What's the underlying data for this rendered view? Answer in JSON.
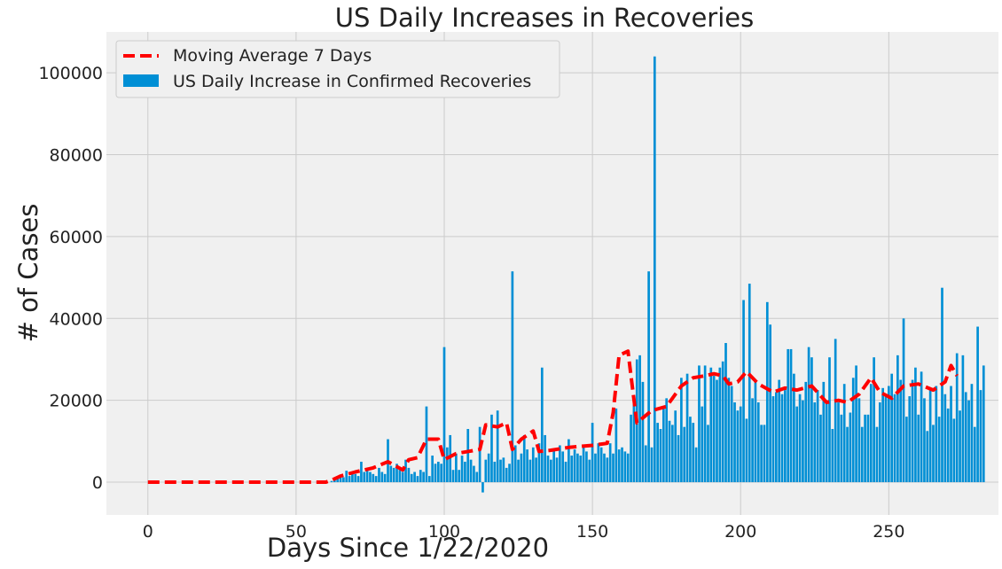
{
  "chart_data": {
    "type": "bar",
    "title": "US Daily Increases in Recoveries",
    "xlabel": "Days Since 1/22/2020",
    "ylabel": "# of Cases",
    "xlim": [
      -14,
      287
    ],
    "ylim": [
      -8000,
      110000
    ],
    "xticks": [
      0,
      50,
      100,
      150,
      200,
      250
    ],
    "yticks": [
      0,
      20000,
      40000,
      60000,
      80000,
      100000
    ],
    "grid": true,
    "legend_position": "top-left",
    "series": [
      {
        "name": "Moving Average 7 Days",
        "kind": "line",
        "style": "dashed",
        "color": "#ff0000",
        "x": [
          0,
          60,
          62,
          65,
          70,
          76,
          81,
          86,
          88,
          91,
          94,
          98,
          100,
          104,
          108,
          112,
          114,
          118,
          121,
          123,
          126,
          130,
          132,
          136,
          142,
          150,
          155,
          157,
          159,
          162,
          163,
          165,
          170,
          175,
          180,
          184,
          188,
          191,
          194,
          196,
          199,
          202,
          206,
          211,
          215,
          219,
          224,
          229,
          233,
          236,
          240,
          244,
          247,
          251,
          255,
          260,
          265,
          269,
          271,
          273
        ],
        "values": [
          0,
          0,
          500,
          1500,
          2500,
          3500,
          5000,
          3000,
          5500,
          6000,
          10500,
          10500,
          5500,
          7000,
          7500,
          8000,
          14000,
          13500,
          14500,
          8000,
          10500,
          12500,
          7500,
          7800,
          8500,
          9000,
          9500,
          17000,
          31000,
          32000,
          26000,
          14500,
          17500,
          18500,
          23500,
          25500,
          26000,
          26500,
          26000,
          24000,
          24500,
          27000,
          24000,
          22000,
          23000,
          22500,
          23500,
          19500,
          20000,
          19500,
          21500,
          25500,
          22000,
          20500,
          23500,
          24000,
          22500,
          24500,
          28500,
          26000
        ]
      },
      {
        "name": "US Daily Increase in Confirmed Recoveries",
        "kind": "bar",
        "color": "#008fd5",
        "x0": 0,
        "values": [
          0,
          0,
          0,
          0,
          0,
          0,
          0,
          0,
          0,
          0,
          0,
          0,
          0,
          0,
          0,
          0,
          0,
          0,
          0,
          0,
          0,
          0,
          0,
          0,
          0,
          0,
          0,
          0,
          0,
          0,
          0,
          0,
          0,
          0,
          0,
          0,
          0,
          0,
          0,
          0,
          0,
          0,
          0,
          0,
          0,
          0,
          0,
          0,
          0,
          0,
          0,
          0,
          0,
          0,
          0,
          0,
          0,
          0,
          0,
          0,
          0,
          0,
          300,
          600,
          800,
          1500,
          1200,
          2800,
          1500,
          2500,
          2000,
          1500,
          5000,
          2500,
          3000,
          2500,
          2000,
          1500,
          3500,
          2500,
          2000,
          10500,
          4000,
          3500,
          4500,
          3000,
          2500,
          5500,
          3500,
          2000,
          2500,
          1500,
          3000,
          2500,
          18500,
          1500,
          6500,
          4500,
          5000,
          4500,
          33000,
          8500,
          11500,
          3000,
          7000,
          3000,
          6500,
          5000,
          13000,
          5500,
          4000,
          2500,
          13500,
          -2500,
          5500,
          7000,
          16500,
          5000,
          17500,
          5500,
          6000,
          3500,
          4500,
          51500,
          9000,
          5500,
          7000,
          11500,
          8000,
          5500,
          8500,
          6000,
          9500,
          28000,
          11500,
          6500,
          5500,
          8000,
          6000,
          9000,
          7500,
          5000,
          10500,
          6500,
          8000,
          7000,
          6500,
          9000,
          7500,
          5500,
          14500,
          7000,
          9500,
          8500,
          7000,
          6000,
          9500,
          7000,
          18000,
          8000,
          8500,
          7500,
          7000,
          16500,
          20000,
          30000,
          31000,
          24500,
          9000,
          51500,
          8500,
          104000,
          14500,
          13000,
          18500,
          20500,
          15000,
          14000,
          17500,
          11500,
          25500,
          13500,
          26500,
          16000,
          14500,
          8500,
          28500,
          18500,
          28500,
          14000,
          28000,
          26000,
          25000,
          28000,
          29500,
          34000,
          25500,
          23500,
          19500,
          17500,
          18500,
          44500,
          15500,
          48500,
          20500,
          24500,
          19500,
          14000,
          14000,
          44000,
          38500,
          21000,
          22000,
          25000,
          21500,
          22500,
          32500,
          32500,
          26500,
          18500,
          21500,
          20000,
          24500,
          33000,
          30500,
          19500,
          22500,
          16500,
          24500,
          19500,
          30500,
          13000,
          35000,
          19500,
          16500,
          24000,
          13500,
          17000,
          25500,
          28500,
          20500,
          13500,
          16500,
          16500,
          24000,
          30500,
          13500,
          19500,
          23000,
          21500,
          23500,
          26500,
          21500,
          31000,
          25000,
          40000,
          16000,
          21000,
          25000,
          28000,
          16500,
          27000,
          20500,
          12500,
          22500,
          14000,
          23500,
          16000,
          47500,
          21500,
          18000,
          23500,
          15500,
          31500,
          17500,
          31000,
          22000,
          20000,
          24000,
          13500,
          38000,
          22500,
          28500
        ]
      }
    ]
  },
  "colors": {
    "plot_background": "#f0f0f0",
    "grid": "#cbcbcb",
    "bar": "#008fd5",
    "line": "#ff0000"
  }
}
